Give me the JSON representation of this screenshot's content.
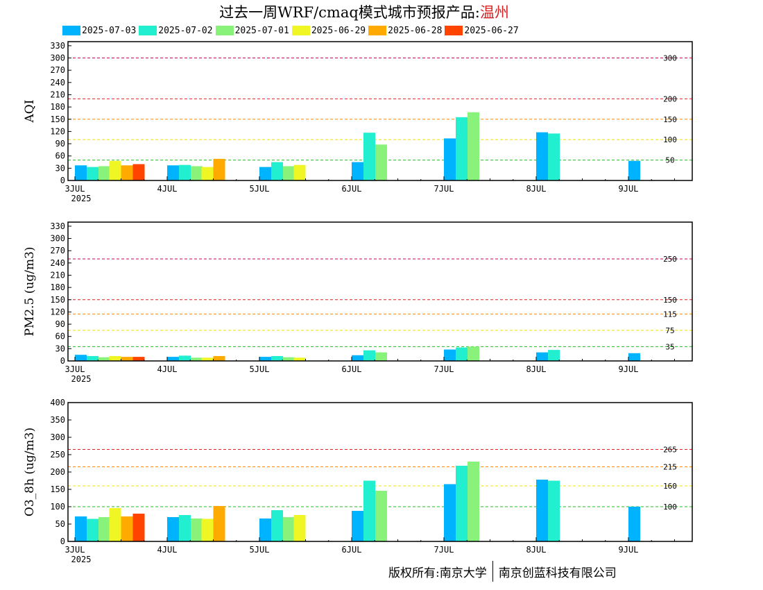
{
  "header": {
    "title_prefix": "过去一周WRF/cmaq模式城市预报产品:",
    "city": "温州"
  },
  "footer": {
    "copyright": "版权所有:南京大学",
    "company": "南京创蓝科技有限公司"
  },
  "colors": {
    "2025-07-03": "#00b3ff",
    "2025-07-02": "#22eed0",
    "2025-07-01": "#88f27a",
    "2025-06-29": "#f0f524",
    "2025-06-28": "#ffaa00",
    "2025-06-27": "#ff4400"
  },
  "chart_data": [
    {
      "type": "bar",
      "ylabel": "AQI",
      "ylim": [
        0,
        340
      ],
      "yticks": [
        0,
        30,
        60,
        90,
        120,
        150,
        180,
        210,
        240,
        270,
        300,
        330
      ],
      "xticks": [
        "3JUL",
        "4JUL",
        "5JUL",
        "6JUL",
        "7JUL",
        "8JUL",
        "9JUL"
      ],
      "xsublabel": "2025",
      "thresholds": [
        {
          "value": 300,
          "label": "300",
          "color": "#c8005a"
        },
        {
          "value": 200,
          "label": "200",
          "color": "#e02020"
        },
        {
          "value": 150,
          "label": "150",
          "color": "#ff8800"
        },
        {
          "value": 100,
          "label": "100",
          "color": "#f0e000"
        },
        {
          "value": 50,
          "label": "50",
          "color": "#22bb22"
        }
      ],
      "legend": [
        "2025-07-03",
        "2025-07-02",
        "2025-07-01",
        "2025-06-29",
        "2025-06-28",
        "2025-06-27"
      ],
      "groups": [
        {
          "day": 0.0,
          "bars": [
            [
              "2025-07-03",
              37
            ],
            [
              "2025-07-02",
              33
            ],
            [
              "2025-07-01",
              35
            ]
          ]
        },
        {
          "day": 0.5,
          "bars": [
            [
              "2025-06-29",
              48
            ],
            [
              "2025-06-28",
              37
            ],
            [
              "2025-06-27",
              40
            ]
          ]
        },
        {
          "day": 1.0,
          "bars": [
            [
              "2025-07-03",
              37
            ],
            [
              "2025-07-02",
              38
            ],
            [
              "2025-07-01",
              35
            ]
          ]
        },
        {
          "day": 1.5,
          "bars": [
            [
              "2025-06-29",
              33
            ],
            [
              "2025-06-28",
              53
            ]
          ]
        },
        {
          "day": 2.0,
          "bars": [
            [
              "2025-07-03",
              33
            ],
            [
              "2025-07-02",
              45
            ],
            [
              "2025-07-01",
              35
            ]
          ]
        },
        {
          "day": 2.5,
          "bars": [
            [
              "2025-06-29",
              38
            ]
          ]
        },
        {
          "day": 3.0,
          "bars": [
            [
              "2025-07-03",
              45
            ],
            [
              "2025-07-02",
              117
            ],
            [
              "2025-07-01",
              88
            ]
          ]
        },
        {
          "day": 4.0,
          "bars": [
            [
              "2025-07-03",
              103
            ],
            [
              "2025-07-02",
              155
            ],
            [
              "2025-07-01",
              167
            ]
          ]
        },
        {
          "day": 5.0,
          "bars": [
            [
              "2025-07-03",
              118
            ],
            [
              "2025-07-02",
              115
            ]
          ]
        },
        {
          "day": 6.0,
          "bars": [
            [
              "2025-07-03",
              48
            ]
          ]
        }
      ]
    },
    {
      "type": "bar",
      "ylabel": "PM2.5 (ug/m3)",
      "ylim": [
        0,
        340
      ],
      "yticks": [
        0,
        30,
        60,
        90,
        120,
        150,
        180,
        210,
        240,
        270,
        300,
        330
      ],
      "xticks": [
        "3JUL",
        "4JUL",
        "5JUL",
        "6JUL",
        "7JUL",
        "8JUL",
        "9JUL"
      ],
      "xsublabel": "2025",
      "thresholds": [
        {
          "value": 250,
          "label": "250",
          "color": "#c8005a"
        },
        {
          "value": 150,
          "label": "150",
          "color": "#e02020"
        },
        {
          "value": 115,
          "label": "115",
          "color": "#ff8800"
        },
        {
          "value": 75,
          "label": "75",
          "color": "#f0e000"
        },
        {
          "value": 35,
          "label": "35",
          "color": "#22bb22"
        }
      ],
      "groups": [
        {
          "day": 0.0,
          "bars": [
            [
              "2025-07-03",
              15
            ],
            [
              "2025-07-02",
              12
            ],
            [
              "2025-07-01",
              9
            ]
          ]
        },
        {
          "day": 0.5,
          "bars": [
            [
              "2025-06-29",
              12
            ],
            [
              "2025-06-28",
              10
            ],
            [
              "2025-06-27",
              10
            ]
          ]
        },
        {
          "day": 1.0,
          "bars": [
            [
              "2025-07-03",
              10
            ],
            [
              "2025-07-02",
              13
            ],
            [
              "2025-07-01",
              8
            ]
          ]
        },
        {
          "day": 1.5,
          "bars": [
            [
              "2025-06-29",
              8
            ],
            [
              "2025-06-28",
              12
            ]
          ]
        },
        {
          "day": 2.0,
          "bars": [
            [
              "2025-07-03",
              10
            ],
            [
              "2025-07-02",
              12
            ],
            [
              "2025-07-01",
              9
            ]
          ]
        },
        {
          "day": 2.5,
          "bars": [
            [
              "2025-06-29",
              8
            ]
          ]
        },
        {
          "day": 3.0,
          "bars": [
            [
              "2025-07-03",
              14
            ],
            [
              "2025-07-02",
              26
            ],
            [
              "2025-07-01",
              21
            ]
          ]
        },
        {
          "day": 4.0,
          "bars": [
            [
              "2025-07-03",
              28
            ],
            [
              "2025-07-02",
              33
            ],
            [
              "2025-07-01",
              35
            ]
          ]
        },
        {
          "day": 5.0,
          "bars": [
            [
              "2025-07-03",
              21
            ],
            [
              "2025-07-02",
              27
            ]
          ]
        },
        {
          "day": 6.0,
          "bars": [
            [
              "2025-07-03",
              19
            ]
          ]
        }
      ]
    },
    {
      "type": "bar",
      "ylabel": "O3_8h (ug/m3)",
      "ylim": [
        0,
        400
      ],
      "yticks": [
        0,
        50,
        100,
        150,
        200,
        250,
        300,
        350,
        400
      ],
      "xticks": [
        "3JUL",
        "4JUL",
        "5JUL",
        "6JUL",
        "7JUL",
        "8JUL",
        "9JUL"
      ],
      "xsublabel": "2025",
      "thresholds": [
        {
          "value": 265,
          "label": "265",
          "color": "#e02020"
        },
        {
          "value": 215,
          "label": "215",
          "color": "#ff8800"
        },
        {
          "value": 160,
          "label": "160",
          "color": "#f0e000"
        },
        {
          "value": 100,
          "label": "100",
          "color": "#22bb22"
        }
      ],
      "groups": [
        {
          "day": 0.0,
          "bars": [
            [
              "2025-07-03",
              72
            ],
            [
              "2025-07-02",
              65
            ],
            [
              "2025-07-01",
              70
            ]
          ]
        },
        {
          "day": 0.5,
          "bars": [
            [
              "2025-06-29",
              96
            ],
            [
              "2025-06-28",
              72
            ],
            [
              "2025-06-27",
              80
            ]
          ]
        },
        {
          "day": 1.0,
          "bars": [
            [
              "2025-07-03",
              70
            ],
            [
              "2025-07-02",
              76
            ],
            [
              "2025-07-01",
              66
            ]
          ]
        },
        {
          "day": 1.5,
          "bars": [
            [
              "2025-06-29",
              65
            ],
            [
              "2025-06-28",
              102
            ]
          ]
        },
        {
          "day": 2.0,
          "bars": [
            [
              "2025-07-03",
              66
            ],
            [
              "2025-07-02",
              90
            ],
            [
              "2025-07-01",
              70
            ]
          ]
        },
        {
          "day": 2.5,
          "bars": [
            [
              "2025-06-29",
              76
            ]
          ]
        },
        {
          "day": 3.0,
          "bars": [
            [
              "2025-07-03",
              88
            ],
            [
              "2025-07-02",
              175
            ],
            [
              "2025-07-01",
              146
            ]
          ]
        },
        {
          "day": 4.0,
          "bars": [
            [
              "2025-07-03",
              165
            ],
            [
              "2025-07-02",
              218
            ],
            [
              "2025-07-01",
              230
            ]
          ]
        },
        {
          "day": 5.0,
          "bars": [
            [
              "2025-07-03",
              178
            ],
            [
              "2025-07-02",
              175
            ]
          ]
        },
        {
          "day": 6.0,
          "bars": [
            [
              "2025-07-03",
              100
            ]
          ]
        }
      ]
    }
  ]
}
